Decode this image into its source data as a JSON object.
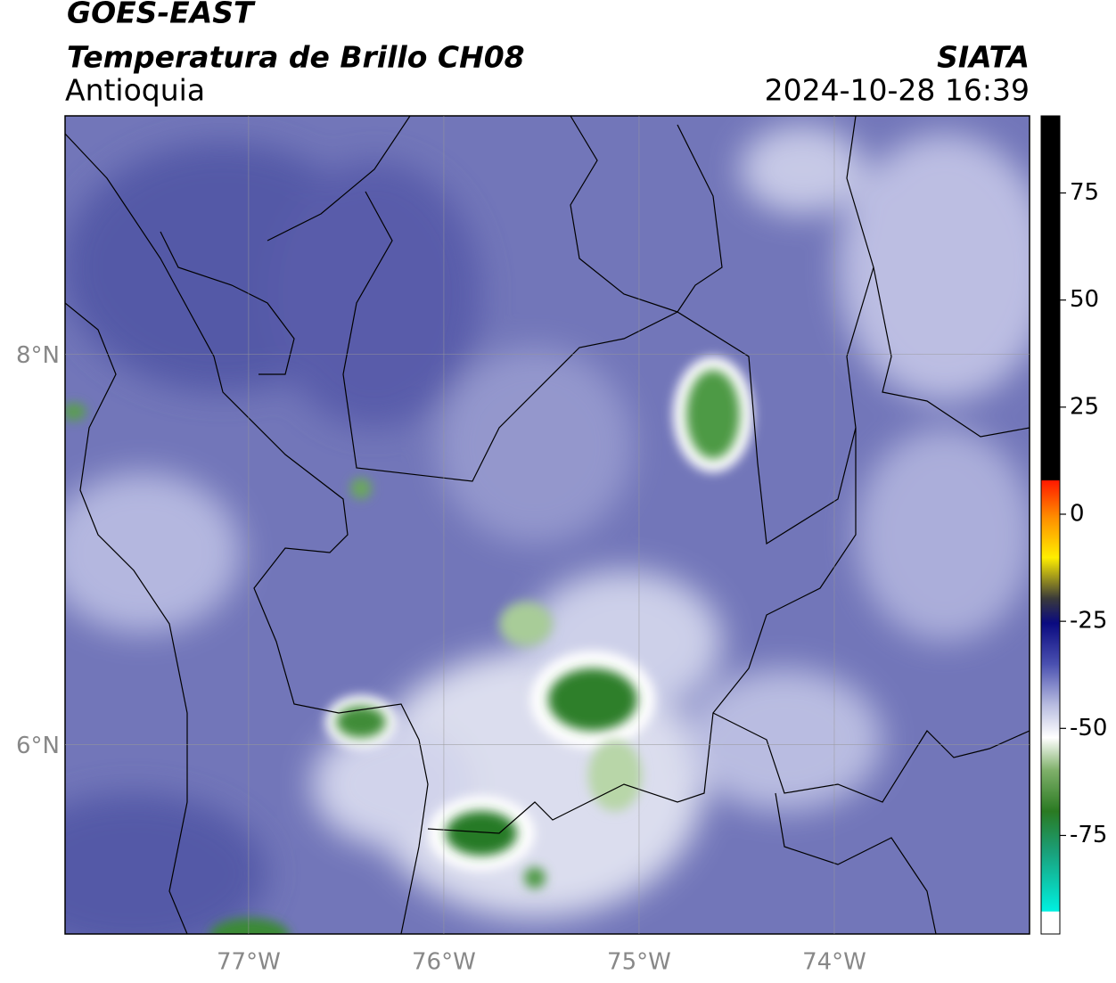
{
  "header": {
    "title": "GOES-EAST",
    "subtitle": "Temperatura de Brillo CH08",
    "region": "Antioquia",
    "source": "SIATA",
    "datetime": "2024-10-28 16:39"
  },
  "map": {
    "xlim": [
      -77.94,
      -73.0
    ],
    "ylim": [
      5.03,
      9.22
    ],
    "xticks": [
      {
        "value": -77,
        "label": "77°W"
      },
      {
        "value": -76,
        "label": "76°W"
      },
      {
        "value": -75,
        "label": "75°W"
      },
      {
        "value": -74,
        "label": "74°W"
      }
    ],
    "yticks": [
      {
        "value": 8,
        "label": "8°N"
      },
      {
        "value": 6,
        "label": "6°N"
      }
    ]
  },
  "colorbar": {
    "lim": [
      -98,
      93
    ],
    "ticks": [
      75,
      50,
      25,
      0,
      -25,
      -50,
      -75
    ]
  }
}
